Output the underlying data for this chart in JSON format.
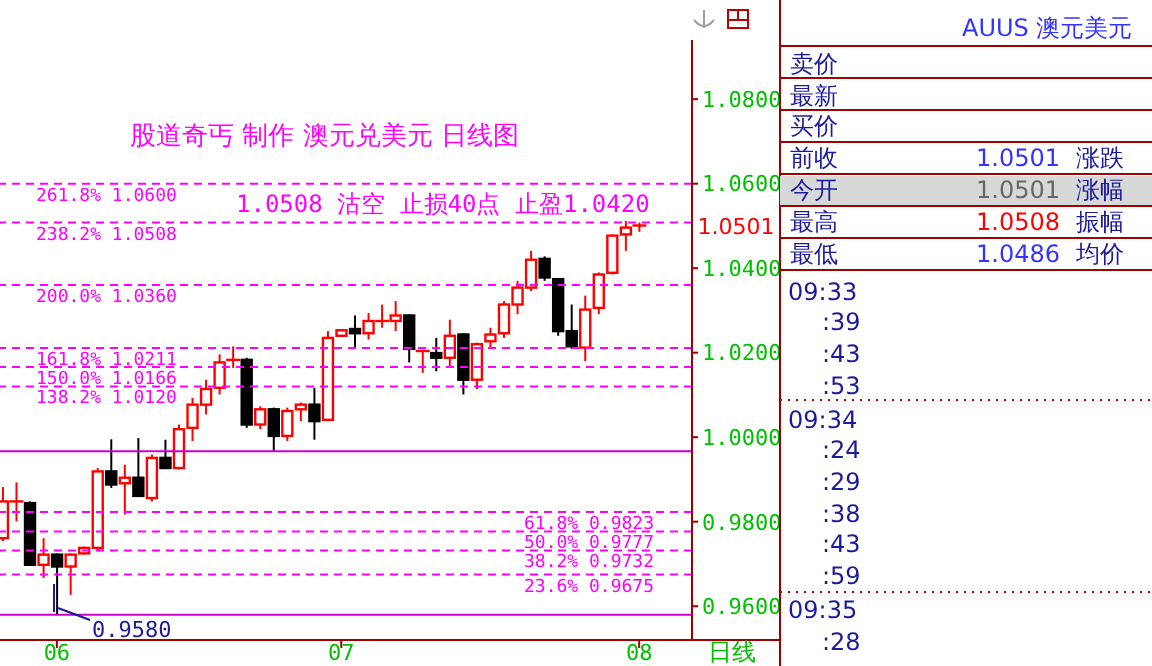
{
  "chart_data": {
    "type": "candlestick",
    "title": "股道奇丐 制作 澳元兑美元 日线图",
    "categories": [
      null,
      null,
      null,
      null,
      "06",
      null,
      null,
      null,
      null,
      null,
      null,
      null,
      null,
      null,
      null,
      null,
      null,
      null,
      null,
      null,
      null,
      null,
      null,
      null,
      null,
      "07",
      null,
      null,
      null,
      null,
      null,
      null,
      null,
      null,
      null,
      null,
      null,
      null,
      null,
      null,
      null,
      null,
      null,
      null,
      null,
      null,
      null,
      "08"
    ],
    "ohlc": [
      [
        0.9761,
        0.9882,
        0.9754,
        0.9848
      ],
      [
        0.9848,
        0.9893,
        0.9801,
        0.9848
      ],
      [
        0.9844,
        0.9848,
        0.9698,
        0.9698
      ],
      [
        0.9698,
        0.9761,
        0.9667,
        0.9722
      ],
      [
        0.9722,
        0.9725,
        0.958,
        0.9694
      ],
      [
        0.9694,
        0.9725,
        0.9627,
        0.9722
      ],
      [
        0.9725,
        0.9741,
        0.9722,
        0.9738
      ],
      [
        0.9738,
        0.9927,
        0.973,
        0.9919
      ],
      [
        0.9919,
        0.9995,
        0.988,
        0.9888
      ],
      [
        0.9891,
        0.9935,
        0.9817,
        0.9904
      ],
      [
        0.9904,
        0.9998,
        0.9861,
        0.9861
      ],
      [
        0.9856,
        0.9959,
        0.9848,
        0.9951
      ],
      [
        0.9951,
        0.9994,
        0.9927,
        0.9927
      ],
      [
        0.9927,
        1.003,
        0.9924,
        1.0019
      ],
      [
        1.0022,
        1.0093,
        0.9991,
        1.0077
      ],
      [
        1.0077,
        1.0136,
        1.0054,
        1.0114
      ],
      [
        1.0117,
        1.0196,
        1.0101,
        1.0177
      ],
      [
        1.0183,
        1.0215,
        1.0164,
        1.0183
      ],
      [
        1.0183,
        1.0188,
        1.0022,
        1.003
      ],
      [
        1.003,
        1.0073,
        1.0019,
        1.0066
      ],
      [
        1.0066,
        1.007,
        0.9967,
        1.0003
      ],
      [
        1.0003,
        1.007,
        0.9991,
        1.0062
      ],
      [
        1.0066,
        1.0082,
        1.0038,
        1.0077
      ],
      [
        1.0077,
        1.0117,
        0.9994,
        1.0038
      ],
      [
        1.0041,
        1.0251,
        1.0038,
        1.0235
      ],
      [
        1.024,
        1.0256,
        1.024,
        1.0253
      ],
      [
        1.0256,
        1.0288,
        1.0212,
        1.0246
      ],
      [
        1.0246,
        1.0294,
        1.0231,
        1.0275
      ],
      [
        1.0275,
        1.0314,
        1.0259,
        1.0275
      ],
      [
        1.0275,
        1.0322,
        1.0251,
        1.0288
      ],
      [
        1.0288,
        1.0291,
        1.0177,
        1.0209
      ],
      [
        1.0204,
        1.0204,
        1.0152,
        1.0204
      ],
      [
        1.0199,
        1.0235,
        1.0156,
        1.0188
      ],
      [
        1.0188,
        1.0278,
        1.0167,
        1.024
      ],
      [
        1.0243,
        1.0246,
        1.0101,
        1.0136
      ],
      [
        1.0136,
        1.0224,
        1.0114,
        1.022
      ],
      [
        1.0227,
        1.0259,
        1.0212,
        1.0243
      ],
      [
        1.0246,
        1.0322,
        1.0235,
        1.0314
      ],
      [
        1.0314,
        1.037,
        1.0291,
        1.0354
      ],
      [
        1.0354,
        1.0441,
        1.0346,
        1.042
      ],
      [
        1.0422,
        1.0428,
        1.037,
        1.0378
      ],
      [
        1.0374,
        1.0374,
        1.024,
        1.0251
      ],
      [
        1.0251,
        1.0314,
        1.0209,
        1.0215
      ],
      [
        1.0212,
        1.0335,
        1.018,
        1.0302
      ],
      [
        1.0306,
        1.039,
        1.0291,
        1.0385
      ],
      [
        1.0389,
        1.048,
        1.0385,
        1.0477
      ],
      [
        1.048,
        1.0512,
        1.0441,
        1.0496
      ],
      [
        1.0501,
        1.0508,
        1.0486,
        1.0501
      ]
    ],
    "ylim": [
      0.952,
      1.094
    ],
    "yticks": [
      {
        "value": 0.96,
        "label": "0.9600"
      },
      {
        "value": 0.98,
        "label": "0.9800"
      },
      {
        "value": 1.0,
        "label": "1.0000"
      },
      {
        "value": 1.02,
        "label": "1.0200"
      },
      {
        "value": 1.04,
        "label": "1.0400"
      },
      {
        "value": 1.06,
        "label": "1.0600"
      },
      {
        "value": 1.08,
        "label": "1.0800"
      }
    ],
    "ref_lines": [
      {
        "axis": "y",
        "value": 1.06,
        "label": "261.8% 1.0600",
        "color": "#ff00ff",
        "line_style": "dashed"
      },
      {
        "axis": "y",
        "value": 1.0508,
        "label": "238.2% 1.0508",
        "color": "#ff00ff",
        "line_style": "dashed"
      },
      {
        "axis": "y",
        "value": 1.036,
        "label": "200.0% 1.0360",
        "color": "#ff00ff",
        "line_style": "dashed"
      },
      {
        "axis": "y",
        "value": 1.0211,
        "label": "161.8% 1.0211",
        "color": "#ff00ff",
        "line_style": "dashed"
      },
      {
        "axis": "y",
        "value": 1.0166,
        "label": "150.0% 1.0166",
        "color": "#ff00ff",
        "line_style": "dashed"
      },
      {
        "axis": "y",
        "value": 1.012,
        "label": "138.2% 1.0120",
        "color": "#ff00ff",
        "line_style": "dashed"
      },
      {
        "axis": "y",
        "value": 0.9967,
        "color": "#cc00cc",
        "line_style": "solid"
      },
      {
        "axis": "y",
        "value": 0.9823,
        "label": "61.8% 0.9823",
        "color": "#ff00ff",
        "line_style": "dashed"
      },
      {
        "axis": "y",
        "value": 0.9777,
        "label": "50.0% 0.9777",
        "color": "#ff00ff",
        "line_style": "dashed"
      },
      {
        "axis": "y",
        "value": 0.9732,
        "label": "38.2% 0.9732",
        "color": "#ff00ff",
        "line_style": "dashed"
      },
      {
        "axis": "y",
        "value": 0.9675,
        "label": "23.6% 0.9675",
        "color": "#ff00ff",
        "line_style": "dashed"
      },
      {
        "axis": "y",
        "value": 0.958,
        "label": "0.9580",
        "color": "#cc00cc",
        "line_style": "solid"
      }
    ],
    "annotations": [
      "1.0508 沽空 止损40点 止盈1.0420",
      "1.0501",
      "日线",
      "AUUS 澳元美元",
      "卖价",
      "最新",
      "买价",
      "前收",
      "1.0501",
      "涨跌",
      "今开",
      "1.0501",
      "涨幅",
      "最高",
      "1.0508",
      "振幅",
      "最低",
      "1.0486",
      "均价",
      "09:33",
      ":39",
      ":43",
      ":53",
      "09:34",
      ":24",
      ":29",
      ":38",
      ":43",
      ":59",
      "09:35",
      ":28"
    ]
  }
}
